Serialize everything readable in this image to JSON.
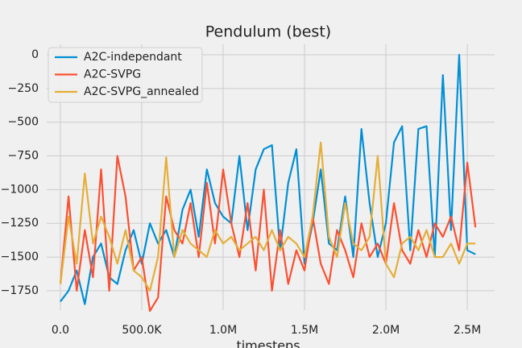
{
  "chart_data": {
    "type": "line",
    "title": "Pendulum (best)",
    "x_label": "timesteps",
    "x": [
      0,
      50000,
      100000,
      150000,
      200000,
      250000,
      300000,
      350000,
      400000,
      450000,
      500000,
      550000,
      600000,
      650000,
      700000,
      750000,
      800000,
      850000,
      900000,
      950000,
      1000000,
      1050000,
      1100000,
      1150000,
      1200000,
      1250000,
      1300000,
      1350000,
      1400000,
      1450000,
      1500000,
      1550000,
      1600000,
      1650000,
      1700000,
      1750000,
      1800000,
      1850000,
      1900000,
      1950000,
      2000000,
      2050000,
      2100000,
      2150000,
      2200000,
      2250000,
      2300000,
      2350000,
      2400000,
      2450000,
      2500000,
      2550000
    ],
    "series": [
      {
        "name": "A2C-independant",
        "color": "#008fd5",
        "values": [
          -1830,
          -1750,
          -1600,
          -1850,
          -1500,
          -1400,
          -1650,
          -1700,
          -1450,
          -1300,
          -1550,
          -1250,
          -1400,
          -1300,
          -1500,
          -1150,
          -1000,
          -1350,
          -850,
          -1100,
          -1200,
          -1250,
          -750,
          -1300,
          -850,
          -700,
          -670,
          -1450,
          -950,
          -700,
          -1550,
          -1250,
          -850,
          -1400,
          -1450,
          -1050,
          -1500,
          -550,
          -1100,
          -1500,
          -1250,
          -650,
          -530,
          -1450,
          -550,
          -530,
          -1500,
          -150,
          -1300,
          0,
          -1450,
          -1480
        ]
      },
      {
        "name": "A2C-SVPG",
        "color": "#fc4f30",
        "values": [
          -1700,
          -1050,
          -1750,
          -1300,
          -1650,
          -850,
          -1750,
          -750,
          -1050,
          -1600,
          -1500,
          -1900,
          -1800,
          -1050,
          -1300,
          -1400,
          -1100,
          -1500,
          -950,
          -1400,
          -850,
          -1250,
          -1500,
          -1100,
          -1600,
          -1000,
          -1750,
          -1300,
          -1700,
          -1450,
          -1600,
          -1200,
          -1550,
          -1700,
          -1300,
          -1450,
          -1650,
          -1250,
          -1500,
          -1400,
          -1550,
          -1100,
          -1450,
          -1550,
          -1300,
          -1500,
          -1250,
          -1350,
          -1200,
          -1450,
          -800,
          -1280
        ]
      },
      {
        "name": "A2C-SVPG_annealed",
        "color": "#e5ae38",
        "values": [
          -1700,
          -1200,
          -1550,
          -880,
          -1400,
          -1200,
          -1350,
          -1550,
          -1300,
          -1600,
          -1650,
          -1750,
          -1500,
          -760,
          -1500,
          -1300,
          -1400,
          -1450,
          -1500,
          -1300,
          -1400,
          -1350,
          -1450,
          -1400,
          -1350,
          -1450,
          -1300,
          -1450,
          -1350,
          -1400,
          -1500,
          -1200,
          -650,
          -1350,
          -1500,
          -1100,
          -1400,
          -1450,
          -1350,
          -750,
          -1550,
          -1650,
          -1400,
          -1350,
          -1450,
          -1300,
          -1500,
          -1500,
          -1400,
          -1550,
          -1400,
          -1400
        ]
      }
    ],
    "xlim": [
      -84000,
      2668000
    ],
    "xticks": [
      {
        "value": 0,
        "label": "0.0"
      },
      {
        "value": 500000,
        "label": "500.0K"
      },
      {
        "value": 1000000,
        "label": "1.0M"
      },
      {
        "value": 1500000,
        "label": "1.5M"
      },
      {
        "value": 2000000,
        "label": "2.0M"
      },
      {
        "value": 2500000,
        "label": "2.5M"
      }
    ],
    "ylim": [
      -1894,
      78
    ],
    "yticks": [
      {
        "value": -1750,
        "label": "−1750"
      },
      {
        "value": -1500,
        "label": "−1500"
      },
      {
        "value": -1250,
        "label": "−1250"
      },
      {
        "value": -1000,
        "label": "−1000"
      },
      {
        "value": -750,
        "label": "−750"
      },
      {
        "value": -500,
        "label": "−500"
      },
      {
        "value": -250,
        "label": "−250"
      },
      0
    ],
    "grid": true,
    "legend": "upper left"
  }
}
